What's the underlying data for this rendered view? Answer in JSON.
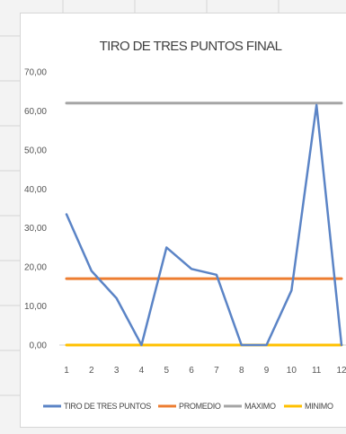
{
  "chart_data": {
    "type": "line",
    "title": "TIRO DE TRES PUNTOS FINAL",
    "categories": [
      "1",
      "2",
      "3",
      "4",
      "5",
      "6",
      "7",
      "8",
      "9",
      "10",
      "11",
      "12"
    ],
    "y_ticks": [
      "0,00",
      "10,00",
      "20,00",
      "30,00",
      "40,00",
      "50,00",
      "60,00",
      "70,00"
    ],
    "ylim": [
      0,
      70
    ],
    "grid": false,
    "legend_position": "bottom",
    "series": [
      {
        "name": "TIRO DE TRES PUNTOS",
        "color": "#5b84c6",
        "values": [
          33.5,
          19,
          12,
          0,
          25,
          19.5,
          18,
          0,
          0,
          14,
          61.5,
          0
        ]
      },
      {
        "name": "PROMEDIO",
        "color": "#ed7d31",
        "values": [
          17,
          17,
          17,
          17,
          17,
          17,
          17,
          17,
          17,
          17,
          17,
          17
        ]
      },
      {
        "name": "MAXIMO",
        "color": "#a5a5a5",
        "values": [
          62,
          62,
          62,
          62,
          62,
          62,
          62,
          62,
          62,
          62,
          62,
          62
        ]
      },
      {
        "name": "MINIMO",
        "color": "#ffc000",
        "values": [
          0,
          0,
          0,
          0,
          0,
          0,
          0,
          0,
          0,
          0,
          0,
          0
        ]
      }
    ]
  }
}
